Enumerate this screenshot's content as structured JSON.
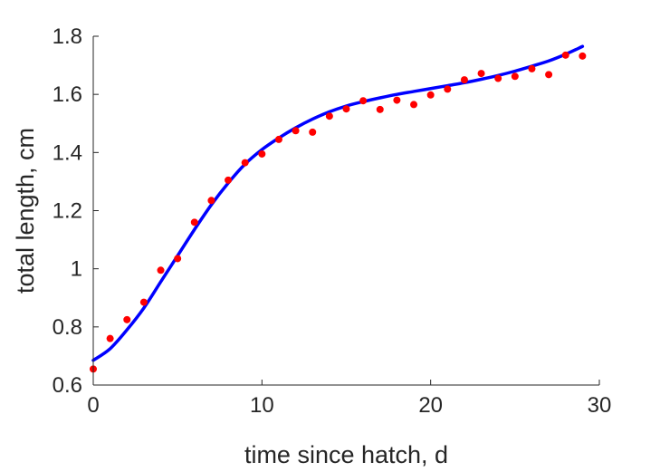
{
  "chart_data": {
    "type": "scatter",
    "title": "",
    "xlabel": "time since hatch, d",
    "ylabel": "total length, cm",
    "xlim": [
      0,
      30
    ],
    "ylim": [
      0.6,
      1.8
    ],
    "xticks": [
      0,
      10,
      20,
      30
    ],
    "xtick_labels": [
      "0",
      "10",
      "20",
      "30"
    ],
    "yticks": [
      0.6,
      0.8,
      1.0,
      1.2,
      1.4,
      1.6,
      1.8
    ],
    "ytick_labels": [
      "0.6",
      "0.8",
      "1",
      "1.2",
      "1.4",
      "1.6",
      "1.8"
    ],
    "grid": false,
    "legend": "none",
    "series": [
      {
        "kind": "points",
        "color": "#ff0000",
        "x": [
          0,
          1,
          2,
          3,
          4,
          5,
          6,
          7,
          8,
          9,
          10,
          11,
          12,
          13,
          14,
          15,
          16,
          17,
          18,
          19,
          20,
          21,
          22,
          23,
          24,
          25,
          26,
          27,
          28,
          29
        ],
        "y": [
          0.655,
          0.76,
          0.825,
          0.885,
          0.995,
          1.035,
          1.16,
          1.235,
          1.305,
          1.365,
          1.395,
          1.445,
          1.475,
          1.47,
          1.525,
          1.55,
          1.578,
          1.548,
          1.58,
          1.565,
          1.598,
          1.618,
          1.65,
          1.672,
          1.655,
          1.662,
          1.688,
          1.668,
          1.735,
          1.732
        ]
      },
      {
        "kind": "line",
        "color": "#0000ff",
        "x": [
          0,
          1,
          2,
          3,
          4,
          5,
          6,
          7,
          8,
          9,
          10,
          11,
          12,
          13,
          14,
          15,
          16,
          17,
          18,
          19,
          20,
          21,
          22,
          23,
          24,
          25,
          26,
          27,
          28,
          29
        ],
        "y": [
          0.685,
          0.725,
          0.79,
          0.865,
          0.955,
          1.045,
          1.135,
          1.22,
          1.295,
          1.36,
          1.41,
          1.45,
          1.485,
          1.515,
          1.54,
          1.56,
          1.575,
          1.588,
          1.6,
          1.61,
          1.62,
          1.63,
          1.64,
          1.652,
          1.665,
          1.68,
          1.697,
          1.715,
          1.738,
          1.765
        ]
      }
    ]
  }
}
